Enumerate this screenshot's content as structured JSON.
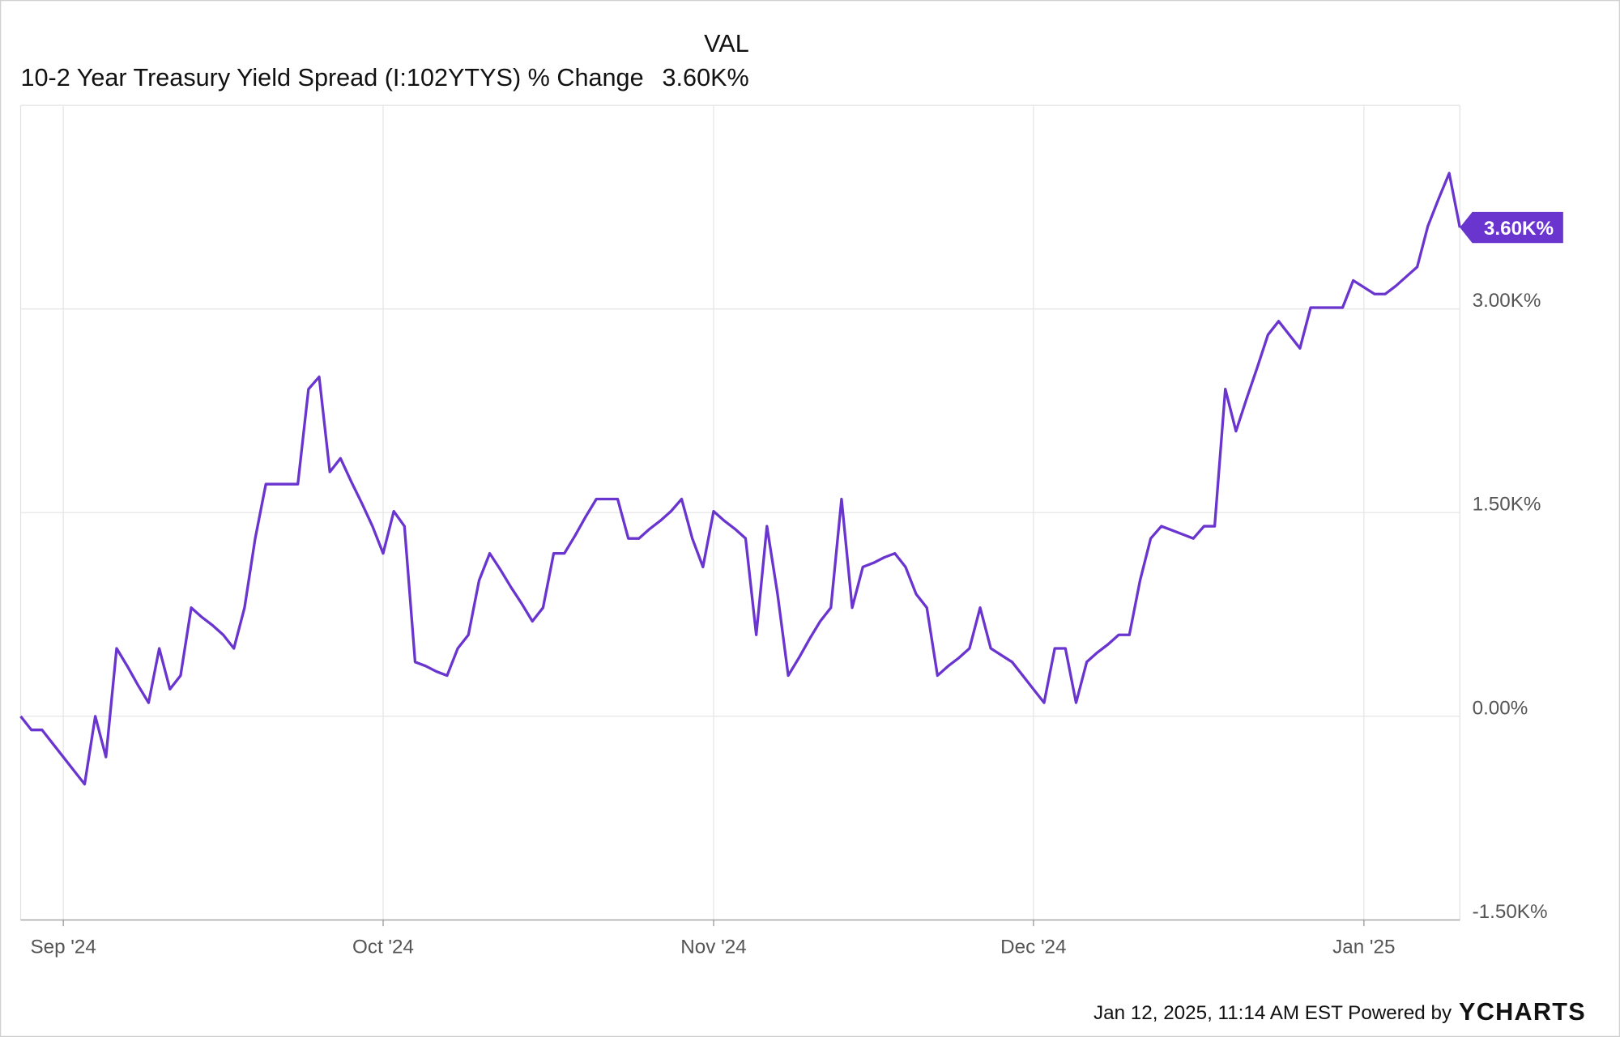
{
  "chart_data": {
    "type": "line",
    "legend_header": "VAL",
    "categories": [
      null,
      null,
      null,
      null,
      "Sep '24",
      null,
      null,
      null,
      null,
      null,
      null,
      null,
      null,
      null,
      null,
      null,
      null,
      null,
      null,
      null,
      null,
      null,
      null,
      null,
      null,
      null,
      null,
      null,
      null,
      null,
      null,
      null,
      null,
      null,
      "Oct '24",
      null,
      null,
      null,
      null,
      null,
      null,
      null,
      null,
      null,
      null,
      null,
      null,
      null,
      null,
      null,
      null,
      null,
      null,
      null,
      null,
      null,
      null,
      null,
      null,
      null,
      null,
      null,
      null,
      null,
      null,
      "Nov '24",
      null,
      null,
      null,
      null,
      null,
      null,
      null,
      null,
      null,
      null,
      null,
      null,
      null,
      null,
      null,
      null,
      null,
      null,
      null,
      null,
      null,
      null,
      null,
      null,
      null,
      null,
      null,
      null,
      null,
      "Dec '24",
      null,
      null,
      null,
      null,
      null,
      null,
      null,
      null,
      null,
      null,
      null,
      null,
      null,
      null,
      null,
      null,
      null,
      null,
      null,
      null,
      null,
      null,
      null,
      null,
      null,
      null,
      null,
      null,
      null,
      null,
      "Jan '25",
      null,
      null,
      null,
      null,
      null,
      null,
      null,
      null,
      null
    ],
    "series": [
      {
        "name": "10-2 Year Treasury Yield Spread (I:102YTYS) % Change",
        "color": "#6a35cf",
        "last_label": "3.60K%",
        "values": [
          0,
          -100,
          -100,
          -200,
          -300,
          -400,
          -500,
          0,
          -300,
          500,
          370,
          230,
          100,
          500,
          200,
          300,
          800,
          730,
          670,
          600,
          500,
          800,
          1310,
          1710,
          1710,
          1710,
          1710,
          2410,
          2500,
          1800,
          1900,
          1730,
          1570,
          1400,
          1200,
          1510,
          1400,
          400,
          370,
          330,
          300,
          500,
          600,
          1000,
          1200,
          1080,
          950,
          830,
          700,
          800,
          1200,
          1200,
          1330,
          1470,
          1600,
          1600,
          1600,
          1310,
          1310,
          1380,
          1440,
          1510,
          1600,
          1310,
          1100,
          1510,
          1440,
          1380,
          1310,
          600,
          1400,
          900,
          300,
          430,
          570,
          700,
          800,
          1600,
          800,
          1100,
          1130,
          1170,
          1200,
          1100,
          900,
          800,
          300,
          370,
          430,
          500,
          800,
          500,
          450,
          400,
          300,
          200,
          100,
          500,
          500,
          100,
          400,
          470,
          530,
          600,
          600,
          1000,
          1310,
          1400,
          1370,
          1340,
          1310,
          1400,
          1400,
          2410,
          2100,
          2340,
          2570,
          2810,
          2910,
          2810,
          2710,
          3010,
          3010,
          3010,
          3010,
          3210,
          3160,
          3110,
          3110,
          3170,
          3240,
          3310,
          3610,
          3810,
          4000,
          3600
        ]
      }
    ],
    "ylim": [
      -1500,
      4500
    ],
    "yticks": [
      {
        "value": -1500,
        "label": "-1.50K%"
      },
      {
        "value": 0,
        "label": "0.00%"
      },
      {
        "value": 1500,
        "label": "1.50K%"
      },
      {
        "value": 3000,
        "label": "3.00K%"
      }
    ],
    "grid": true,
    "footer": "Jan 12, 2025, 11:14 AM EST Powered by",
    "brand": "YCHARTS"
  }
}
